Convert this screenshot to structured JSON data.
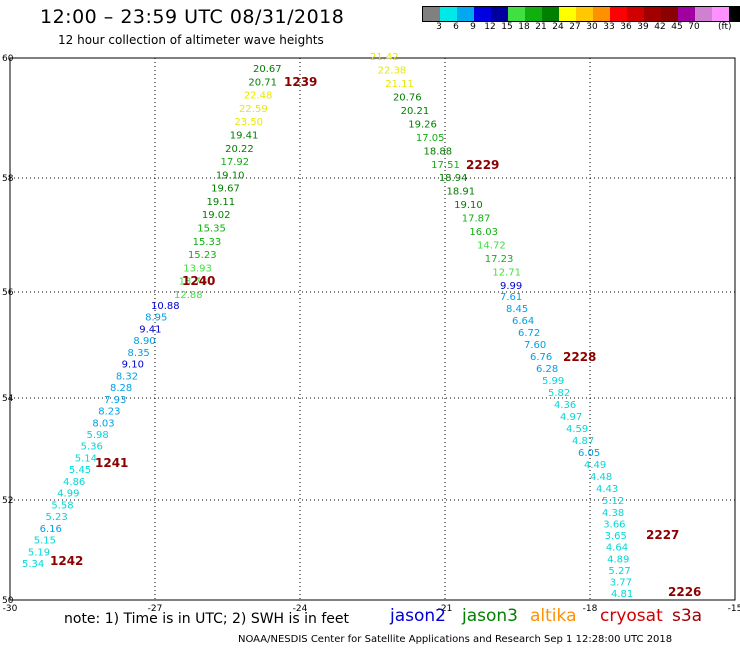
{
  "title": "12:00 – 23:59 UTC 08/31/2018",
  "subtitle": "12 hour collection of altimeter wave heights",
  "legend": {
    "colors": [
      "#808080",
      "#00e8e8",
      "#00a8f0",
      "#0000e0",
      "#0000a0",
      "#40e040",
      "#10b010",
      "#008000",
      "#ffff00",
      "#ffc800",
      "#ff9000",
      "#ff0000",
      "#d00000",
      "#a00000",
      "#8b0000",
      "#a000a0",
      "#d080d0",
      "#ff90ff",
      "#000000"
    ],
    "labels": [
      "3",
      "6",
      "9",
      "12",
      "15",
      "18",
      "21",
      "24",
      "27",
      "30",
      "33",
      "36",
      "39",
      "42",
      "45",
      "70"
    ],
    "unit": "(ft)"
  },
  "axes": {
    "x_ticks": [
      "-30",
      "-27",
      "-24",
      "-21",
      "-18",
      "-15"
    ],
    "y_ticks": [
      "60",
      "58",
      "56",
      "54",
      "52",
      "50"
    ]
  },
  "passes": [
    {
      "label": "1239",
      "values": [
        "20.67",
        "20.71",
        "22.48",
        "22.59",
        "23.50",
        "19.41",
        "20.22",
        "17.92",
        "19.10",
        "19.67",
        "19.11",
        "19.02",
        "15.35",
        "15.33",
        "15.23",
        "13.93",
        "13.73",
        "12.88"
      ]
    },
    {
      "label": "1240",
      "values": [
        "10.88",
        "8.95",
        "9.41",
        "8.90",
        "8.35",
        "9.10",
        "8.32",
        "8.28",
        "7.93",
        "8.23",
        "8.03",
        "5.98",
        "5.36",
        "5.14",
        "5.45",
        "4.86",
        "4.99",
        "5.58",
        "5.23",
        "6.16",
        "5.15",
        "5.19",
        "5.34"
      ]
    },
    {
      "label": "1241",
      "values": []
    },
    {
      "label": "1242",
      "values": []
    },
    {
      "label": "2229",
      "values": [
        "21.42",
        "22.38",
        "21.11",
        "20.76",
        "20.21",
        "19.26",
        "17.05",
        "18.88",
        "17.51",
        "18.94",
        "18.91",
        "19.10",
        "17.87",
        "16.03",
        "14.72",
        "17.23",
        "12.71",
        "9.99"
      ]
    },
    {
      "label": "2228",
      "values": [
        "7.61",
        "8.45",
        "6.64",
        "6.72",
        "7.60",
        "6.76",
        "6.28",
        "5.99",
        "5.82",
        "4.36",
        "4.97",
        "4.59",
        "4.87",
        "6.05",
        "4.49",
        "4.48",
        "4.43",
        "5.12"
      ]
    },
    {
      "label": "2227",
      "values": [
        "4.38",
        "3.66",
        "3.65",
        "4.64",
        "4.89",
        "5.27",
        "3.77",
        "4.81"
      ]
    },
    {
      "label": "2226",
      "values": []
    }
  ],
  "footer": {
    "note": "note:  1) Time is in UTC; 2) SWH is in feet",
    "satellites": [
      {
        "name": "jason2",
        "color": "#0000d0"
      },
      {
        "name": "jason3",
        "color": "#008000"
      },
      {
        "name": "altika",
        "color": "#ff9000"
      },
      {
        "name": "cryosat",
        "color": "#d00000"
      },
      {
        "name": "s3a",
        "color": "#a00000"
      }
    ],
    "credit": "NOAA/NESDIS Center for Satellite Applications and Research    Sep  1 12:28:00 UTC 2018"
  }
}
